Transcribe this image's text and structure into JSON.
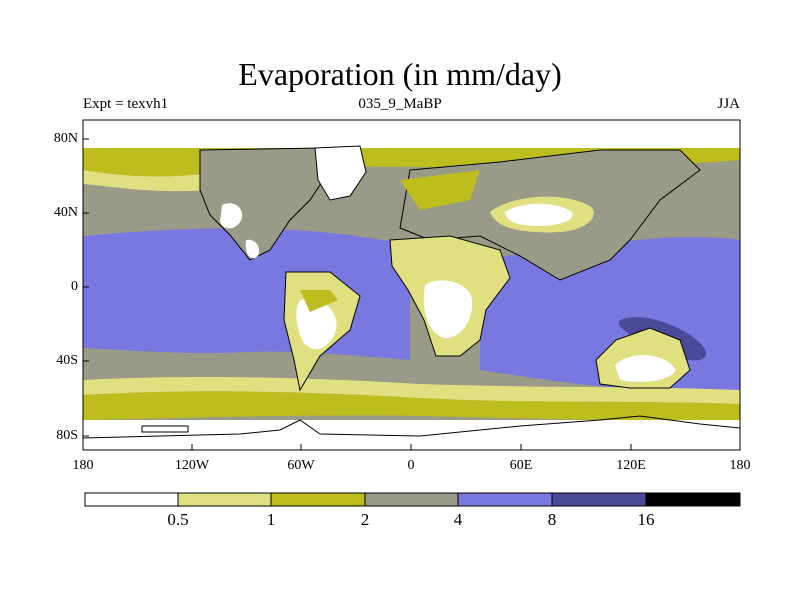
{
  "title": "Evaporation (in mm/day)",
  "left_label": "Expt = texvh1",
  "center_label": "035_9_MaBP",
  "right_label": "JJA",
  "lat_ticks": [
    "80N",
    "40N",
    "0",
    "40S",
    "80S"
  ],
  "lon_ticks": [
    "180",
    "120W",
    "60W",
    "0",
    "60E",
    "120E",
    "180"
  ],
  "colorbar": {
    "levels": [
      "0.5",
      "1",
      "2",
      "4",
      "8",
      "16"
    ],
    "colors": [
      "#ffffff",
      "#e0e080",
      "#bdbd1e",
      "#9a9a88",
      "#7878e0",
      "#4a4a98",
      "#000000"
    ]
  }
}
